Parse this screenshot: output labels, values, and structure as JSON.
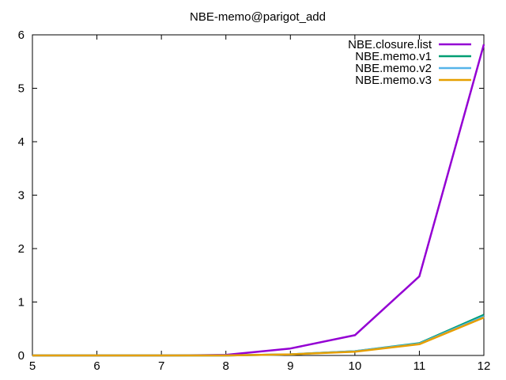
{
  "chart_data": {
    "type": "line",
    "title": "NBE-memo@parigot_add",
    "xlabel": "",
    "ylabel": "",
    "xlim": [
      5,
      12
    ],
    "ylim": [
      0,
      6
    ],
    "xticks": [
      "5",
      "6",
      "7",
      "8",
      "9",
      "10",
      "11",
      "12"
    ],
    "yticks": [
      "0",
      "1",
      "2",
      "3",
      "4",
      "5",
      "6"
    ],
    "grid": false,
    "legend_position": "top-right",
    "x": [
      5,
      6,
      7,
      8,
      9,
      10,
      11,
      12
    ],
    "series": [
      {
        "name": "NBE.closure.list",
        "color": "#9400d3",
        "values": [
          0,
          0,
          0,
          0.01,
          0.13,
          0.38,
          1.48,
          5.82
        ]
      },
      {
        "name": "NBE.memo.v1",
        "color": "#009e73",
        "values": [
          0,
          0,
          0,
          0,
          0.02,
          0.08,
          0.23,
          0.76
        ]
      },
      {
        "name": "NBE.memo.v2",
        "color": "#56b4e9",
        "values": [
          0,
          0,
          0,
          0,
          0.02,
          0.08,
          0.22,
          0.73
        ]
      },
      {
        "name": "NBE.memo.v3",
        "color": "#e69f00",
        "values": [
          0,
          0,
          0,
          0,
          0.02,
          0.07,
          0.21,
          0.71
        ]
      }
    ]
  }
}
